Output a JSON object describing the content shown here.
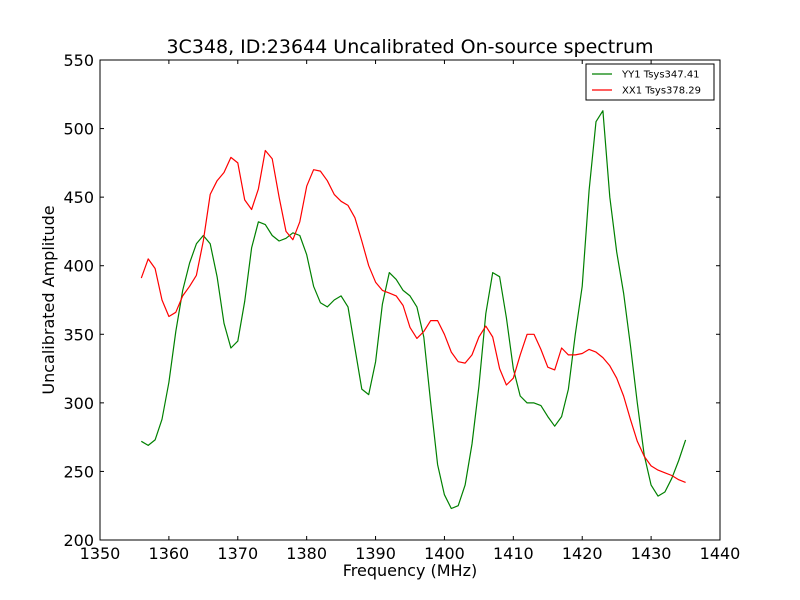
{
  "chart_data": {
    "type": "line",
    "title": "3C348, ID:23644 Uncalibrated On-source spectrum",
    "xlabel": "Frequency (MHz)",
    "ylabel": "Uncalibrated Amplitude",
    "xlim": [
      1350,
      1440
    ],
    "ylim": [
      200,
      550
    ],
    "xticks": [
      1350,
      1360,
      1370,
      1380,
      1390,
      1400,
      1410,
      1420,
      1430,
      1440
    ],
    "yticks": [
      200,
      250,
      300,
      350,
      400,
      450,
      500,
      550
    ],
    "grid": false,
    "legend_position": "top-right",
    "series": [
      {
        "name": "YY1 Tsys347.41",
        "color": "#008000",
        "x": [
          1356,
          1357,
          1358,
          1359,
          1360,
          1361,
          1362,
          1363,
          1364,
          1365,
          1366,
          1367,
          1368,
          1369,
          1370,
          1371,
          1372,
          1373,
          1374,
          1375,
          1376,
          1377,
          1378,
          1379,
          1380,
          1381,
          1382,
          1383,
          1384,
          1385,
          1386,
          1387,
          1388,
          1389,
          1390,
          1391,
          1392,
          1393,
          1394,
          1395,
          1396,
          1397,
          1398,
          1399,
          1400,
          1401,
          1402,
          1403,
          1404,
          1405,
          1406,
          1407,
          1408,
          1409,
          1410,
          1411,
          1412,
          1413,
          1414,
          1415,
          1416,
          1417,
          1418,
          1419,
          1420,
          1421,
          1422,
          1423,
          1424,
          1425,
          1426,
          1427,
          1428,
          1429,
          1430,
          1431,
          1432,
          1433,
          1434,
          1435
        ],
        "values": [
          272,
          269,
          273,
          288,
          315,
          352,
          382,
          402,
          416,
          422,
          416,
          392,
          358,
          340,
          345,
          374,
          413,
          432,
          430,
          422,
          418,
          420,
          424,
          422,
          408,
          385,
          373,
          370,
          375,
          378,
          370,
          340,
          310,
          306,
          330,
          372,
          395,
          390,
          382,
          378,
          370,
          348,
          300,
          255,
          233,
          223,
          225,
          240,
          270,
          312,
          365,
          395,
          392,
          362,
          325,
          305,
          300,
          300,
          298,
          290,
          283,
          290,
          310,
          350,
          385,
          455,
          505,
          513,
          450,
          410,
          380,
          342,
          300,
          262,
          240,
          232,
          235,
          245,
          258,
          273
        ]
      },
      {
        "name": "XX1 Tsys378.29",
        "color": "#ff0000",
        "x": [
          1356,
          1357,
          1358,
          1359,
          1360,
          1361,
          1362,
          1363,
          1364,
          1365,
          1366,
          1367,
          1368,
          1369,
          1370,
          1371,
          1372,
          1373,
          1374,
          1375,
          1376,
          1377,
          1378,
          1379,
          1380,
          1381,
          1382,
          1383,
          1384,
          1385,
          1386,
          1387,
          1388,
          1389,
          1390,
          1391,
          1392,
          1393,
          1394,
          1395,
          1396,
          1397,
          1398,
          1399,
          1400,
          1401,
          1402,
          1403,
          1404,
          1405,
          1406,
          1407,
          1408,
          1409,
          1410,
          1411,
          1412,
          1413,
          1414,
          1415,
          1416,
          1417,
          1418,
          1419,
          1420,
          1421,
          1422,
          1423,
          1424,
          1425,
          1426,
          1427,
          1428,
          1429,
          1430,
          1431,
          1432,
          1433,
          1434,
          1435
        ],
        "values": [
          391,
          405,
          398,
          375,
          363,
          366,
          378,
          385,
          393,
          418,
          452,
          462,
          468,
          479,
          475,
          448,
          441,
          456,
          484,
          478,
          450,
          425,
          419,
          432,
          458,
          470,
          469,
          462,
          452,
          447,
          444,
          435,
          418,
          400,
          388,
          382,
          380,
          378,
          371,
          355,
          347,
          352,
          360,
          360,
          350,
          337,
          330,
          329,
          335,
          348,
          356,
          348,
          325,
          313,
          318,
          335,
          350,
          350,
          339,
          326,
          324,
          340,
          335,
          335,
          336,
          339,
          337,
          333,
          327,
          318,
          305,
          288,
          272,
          261,
          254,
          251,
          249,
          247,
          244,
          242
        ]
      }
    ]
  }
}
